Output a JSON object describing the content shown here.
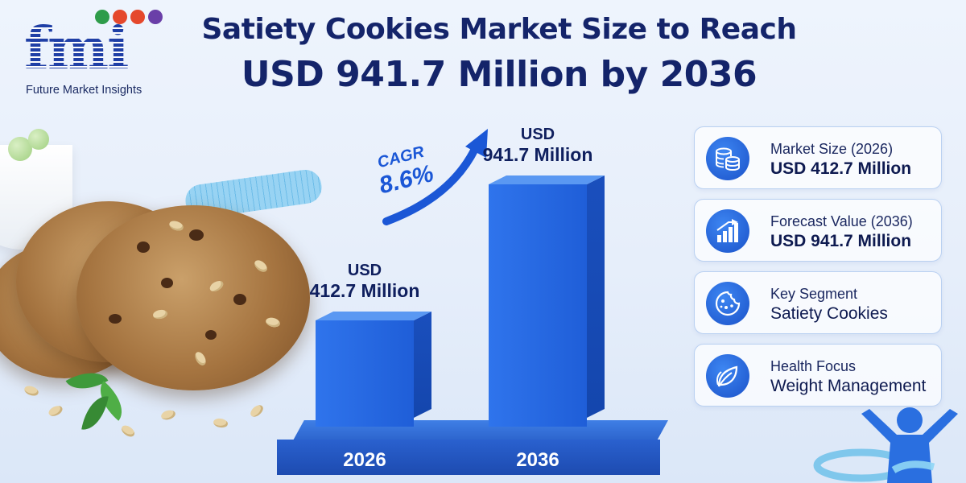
{
  "logo": {
    "letters": "fmi",
    "company": "Future Market Insights"
  },
  "title": {
    "line1": "Satiety Cookies Market Size to Reach",
    "line2": "USD 941.7 Million by 2036"
  },
  "chart_data": {
    "type": "bar",
    "categories": [
      "2026",
      "2036"
    ],
    "values": [
      412.7,
      941.7
    ],
    "value_unit": "USD Million",
    "labels": [
      {
        "unit": "USD",
        "value": "412.7 Million"
      },
      {
        "unit": "USD",
        "value": "941.7 Million"
      }
    ],
    "annotation": {
      "label": "CAGR",
      "value": "8.6%"
    },
    "ylim": [
      0,
      1000
    ],
    "grid": false,
    "style": "3d-bars",
    "colors": {
      "bar": "#2f74ec",
      "bar_side": "#1a4fbd",
      "platform": "#2a61cf"
    }
  },
  "cards": [
    {
      "icon": "coins-icon",
      "label": "Market Size (2026)",
      "value": "USD 412.7 Million",
      "bold": true
    },
    {
      "icon": "bar-growth-icon",
      "label": "Forecast Value (2036)",
      "value": "USD 941.7 Million",
      "bold": true
    },
    {
      "icon": "cookie-icon",
      "label": "Key Segment",
      "value": "Satiety Cookies",
      "bold": false
    },
    {
      "icon": "leaf-icon",
      "label": "Health Focus",
      "value": "Weight Management",
      "bold": false
    }
  ],
  "colors": {
    "title": "#14246a",
    "accent": "#1f5ed8",
    "card_border": "#b9d0f1"
  }
}
